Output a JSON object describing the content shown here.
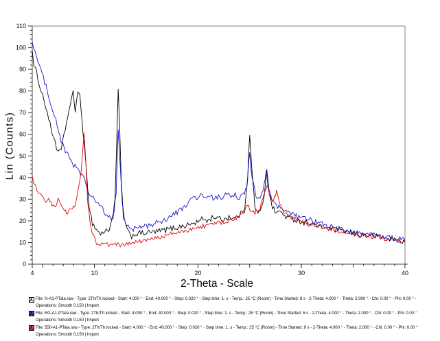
{
  "chart": {
    "y_axis_title": "Lin (Counts)",
    "x_axis_title": "2-Theta - Scale",
    "x_labeled_ticks": [
      4,
      10,
      20,
      30,
      40
    ],
    "y_labeled_ticks": [
      0,
      10,
      20,
      30,
      40,
      50,
      60,
      70,
      80,
      90,
      100,
      110
    ],
    "x_minor_step": 1,
    "x_medium_step": 5,
    "y_minor_step": 2,
    "axis_color": "#444444",
    "border_color": "#808080",
    "tick_color": "#333333"
  },
  "chart_data": {
    "type": "line",
    "title": "",
    "xlabel": "2-Theta - Scale",
    "ylabel": "Lin (Counts)",
    "xlim": [
      4,
      40
    ],
    "ylim": [
      0,
      110
    ],
    "grid": false,
    "legend_position": "bottom",
    "series": [
      {
        "name": "N-A1-PTala.raw",
        "color": "#000000",
        "noise": 1.3,
        "points": [
          [
            4,
            100
          ],
          [
            4.15,
            91
          ],
          [
            4.4,
            89
          ],
          [
            4.7,
            83
          ],
          [
            5,
            78
          ],
          [
            5.3,
            73
          ],
          [
            5.6,
            67
          ],
          [
            5.9,
            61
          ],
          [
            6.2,
            57
          ],
          [
            6.5,
            51
          ],
          [
            6.8,
            53
          ],
          [
            7.1,
            60
          ],
          [
            7.4,
            68
          ],
          [
            7.7,
            74
          ],
          [
            7.95,
            79
          ],
          [
            8.15,
            71
          ],
          [
            8.4,
            80
          ],
          [
            8.6,
            77
          ],
          [
            8.8,
            67
          ],
          [
            9,
            56
          ],
          [
            9.2,
            44
          ],
          [
            9.5,
            27
          ],
          [
            9.8,
            19
          ],
          [
            10.2,
            16
          ],
          [
            10.6,
            14
          ],
          [
            11,
            15
          ],
          [
            11.4,
            16
          ],
          [
            11.8,
            22
          ],
          [
            12,
            30
          ],
          [
            12.15,
            55
          ],
          [
            12.3,
            81
          ],
          [
            12.45,
            60
          ],
          [
            12.6,
            38
          ],
          [
            12.8,
            22
          ],
          [
            13.2,
            15
          ],
          [
            13.6,
            13
          ],
          [
            14,
            14
          ],
          [
            15,
            14.5
          ],
          [
            16,
            15
          ],
          [
            17,
            16
          ],
          [
            18,
            17
          ],
          [
            19,
            18
          ],
          [
            20,
            19.5
          ],
          [
            20.5,
            21
          ],
          [
            21,
            20
          ],
          [
            21.5,
            22
          ],
          [
            22,
            21
          ],
          [
            22.5,
            20.5
          ],
          [
            23,
            22
          ],
          [
            23.5,
            21
          ],
          [
            24,
            22.5
          ],
          [
            24.5,
            25
          ],
          [
            24.8,
            40
          ],
          [
            25,
            59.5
          ],
          [
            25.2,
            44
          ],
          [
            25.5,
            27
          ],
          [
            25.8,
            23
          ],
          [
            26.1,
            25
          ],
          [
            26.4,
            32
          ],
          [
            26.65,
            44.5
          ],
          [
            26.9,
            33
          ],
          [
            27.2,
            26
          ],
          [
            27.6,
            24
          ],
          [
            28,
            24
          ],
          [
            28.5,
            22
          ],
          [
            29,
            21
          ],
          [
            29.5,
            20.5
          ],
          [
            30,
            19.5
          ],
          [
            31,
            18.5
          ],
          [
            32,
            17
          ],
          [
            33,
            16
          ],
          [
            34,
            15.5
          ],
          [
            35,
            14
          ],
          [
            36,
            13.5
          ],
          [
            37,
            13
          ],
          [
            38,
            12
          ],
          [
            39,
            11.5
          ],
          [
            40,
            10.5
          ]
        ]
      },
      {
        "name": "EG-A1-PTala.raw",
        "color": "#1414cc",
        "noise": 1.3,
        "points": [
          [
            4,
            103
          ],
          [
            4.4,
            96
          ],
          [
            4.8,
            90
          ],
          [
            5.2,
            84
          ],
          [
            5.6,
            78
          ],
          [
            6,
            71
          ],
          [
            6.4,
            64
          ],
          [
            6.8,
            57
          ],
          [
            7.2,
            52
          ],
          [
            7.6,
            49
          ],
          [
            8,
            46
          ],
          [
            8.4,
            44
          ],
          [
            8.8,
            41
          ],
          [
            9.05,
            39
          ],
          [
            9.3,
            34
          ],
          [
            9.6,
            32
          ],
          [
            10,
            30
          ],
          [
            10.4,
            28
          ],
          [
            10.8,
            25
          ],
          [
            11.2,
            22
          ],
          [
            11.6,
            21
          ],
          [
            11.9,
            24
          ],
          [
            12.1,
            33
          ],
          [
            12.3,
            62
          ],
          [
            12.5,
            45
          ],
          [
            12.7,
            28
          ],
          [
            13,
            19
          ],
          [
            13.4,
            16
          ],
          [
            14,
            16.5
          ],
          [
            15,
            17.5
          ],
          [
            16,
            19
          ],
          [
            17,
            21
          ],
          [
            18,
            24
          ],
          [
            18.6,
            26
          ],
          [
            19.2,
            29
          ],
          [
            19.6,
            31
          ],
          [
            20,
            30
          ],
          [
            20.4,
            32.5
          ],
          [
            20.8,
            30
          ],
          [
            21.2,
            31.5
          ],
          [
            21.6,
            29.5
          ],
          [
            22,
            32
          ],
          [
            22.4,
            30.5
          ],
          [
            22.8,
            32.5
          ],
          [
            23.2,
            30.5
          ],
          [
            23.6,
            32
          ],
          [
            24,
            30.5
          ],
          [
            24.4,
            32
          ],
          [
            24.7,
            35
          ],
          [
            25,
            51
          ],
          [
            25.25,
            39
          ],
          [
            25.6,
            32
          ],
          [
            26,
            30.5
          ],
          [
            26.3,
            33
          ],
          [
            26.6,
            42
          ],
          [
            26.9,
            34
          ],
          [
            27.3,
            28
          ],
          [
            27.7,
            26.5
          ],
          [
            28.1,
            25
          ],
          [
            28.6,
            24
          ],
          [
            29,
            23
          ],
          [
            30,
            21.5
          ],
          [
            31,
            20
          ],
          [
            32,
            18.5
          ],
          [
            33,
            17
          ],
          [
            34,
            16
          ],
          [
            35,
            15
          ],
          [
            36,
            14
          ],
          [
            37,
            13.5
          ],
          [
            38,
            12.5
          ],
          [
            39,
            12
          ],
          [
            40,
            11
          ]
        ]
      },
      {
        "name": "550-A1-PTala.raw",
        "color": "#e60000",
        "noise": 1.0,
        "points": [
          [
            4,
            40
          ],
          [
            4.3,
            36
          ],
          [
            4.6,
            33
          ],
          [
            5,
            30.5
          ],
          [
            5.3,
            28
          ],
          [
            5.6,
            30
          ],
          [
            5.9,
            27
          ],
          [
            6.2,
            26
          ],
          [
            6.5,
            29.5
          ],
          [
            6.8,
            27
          ],
          [
            7.1,
            24.5
          ],
          [
            7.4,
            24
          ],
          [
            7.7,
            25.5
          ],
          [
            8,
            26
          ],
          [
            8.3,
            30
          ],
          [
            8.6,
            38
          ],
          [
            8.85,
            50
          ],
          [
            9,
            60
          ],
          [
            9.15,
            49
          ],
          [
            9.35,
            29
          ],
          [
            9.6,
            19
          ],
          [
            9.9,
            13
          ],
          [
            10.2,
            10
          ],
          [
            10.6,
            8.5
          ],
          [
            11,
            10
          ],
          [
            11.5,
            8.5
          ],
          [
            12,
            9.5
          ],
          [
            12.5,
            8.5
          ],
          [
            13,
            9
          ],
          [
            13.5,
            9.5
          ],
          [
            14,
            10
          ],
          [
            15,
            11
          ],
          [
            16,
            12
          ],
          [
            17,
            13.5
          ],
          [
            18,
            14.5
          ],
          [
            19,
            15.5
          ],
          [
            20,
            17
          ],
          [
            21,
            18
          ],
          [
            22,
            19
          ],
          [
            23,
            20
          ],
          [
            23.7,
            21
          ],
          [
            24.3,
            23
          ],
          [
            24.8,
            27.5
          ],
          [
            25.1,
            25
          ],
          [
            25.5,
            24
          ],
          [
            26,
            26
          ],
          [
            26.4,
            33
          ],
          [
            26.7,
            37
          ],
          [
            27,
            31
          ],
          [
            27.3,
            29
          ],
          [
            27.6,
            33.5
          ],
          [
            27.9,
            27
          ],
          [
            28.3,
            24
          ],
          [
            28.8,
            22
          ],
          [
            29.3,
            21
          ],
          [
            30,
            20
          ],
          [
            31,
            18.5
          ],
          [
            32,
            17
          ],
          [
            33,
            16
          ],
          [
            34,
            14.5
          ],
          [
            35,
            13.5
          ],
          [
            36,
            13
          ],
          [
            37,
            12.5
          ],
          [
            38,
            12
          ],
          [
            39,
            11
          ],
          [
            40,
            10
          ]
        ]
      }
    ]
  },
  "legend": {
    "entries": [
      {
        "icon_bg": "#ffffff",
        "icon_fg": "#000000",
        "line1": "File: N-A1-PTala.raw - Type: 2Th/Th locked - Start: 4.000 ° - End: 40.000 ° - Step: 0.020 ° - Step time: 1. s - Temp.: 25 °C (Room) - Time Started: 8 s - 2-Theta: 4.000 ° - Theta: 2.000 ° - Chi: 0.00 ° - Phi: 0.00 ° -",
        "line2": "Operations: Smooth 0.150 | Import"
      },
      {
        "icon_bg": "#4444ee",
        "icon_fg": "#000033",
        "line1": "File: EG-A1-PTala.raw - Type: 2Th/Th locked - Start: 4.000 ° - End: 40.000 ° - Step: 0.020 ° - Step time: 1. s - Temp.: 25 °C (Room) - Time Started: 6 s - 2-Theta: 4.000 ° - Theta: 2.000 ° - Chi: 0.00 ° - Phi: 0.00 °",
        "line2": "Operations: Smooth 0.150 | Import"
      },
      {
        "icon_bg": "#ee4444",
        "icon_fg": "#330000",
        "line1": "File: 550-A1-PTala.raw - Type: 2Th/Th locked - Start: 4.000 ° - End: 40.000 ° - Step: 0.020 ° - Step time: 1. s - Temp.: 25 °C (Room) - Time Started: 9 s - 2-Theta: 4.000 ° - Theta: 2.000 ° - Chi: 0.00 ° - Phi: 0.00 °",
        "line2": "Operations: Smooth 0.150 | Import"
      }
    ]
  }
}
